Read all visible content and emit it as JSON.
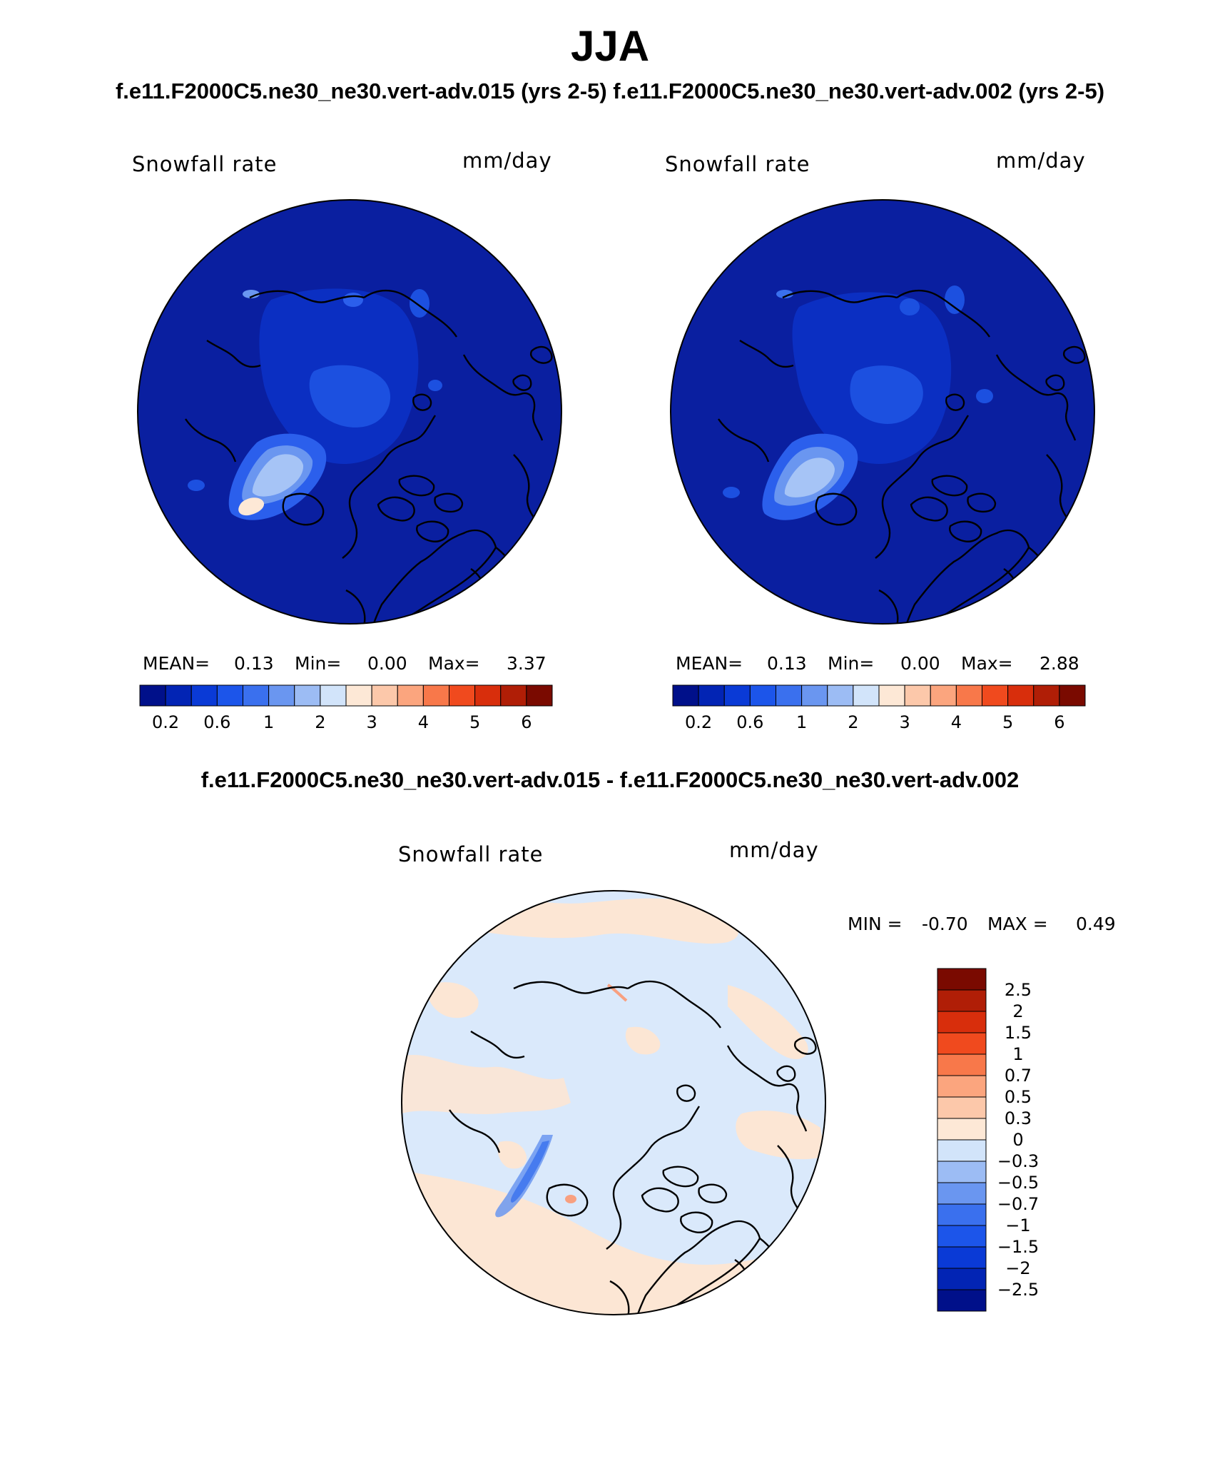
{
  "title": "JJA",
  "case_titles": "f.e11.F2000C5.ne30_ne30.vert-adv.015 (yrs 2-5) f.e11.F2000C5.ne30_ne30.vert-adv.002 (yrs 2-5)",
  "panels": [
    {
      "variable": "Snowfall rate",
      "units": "mm/day",
      "stats": {
        "mean_label": "MEAN=",
        "mean": "0.13",
        "min_label": "Min=",
        "min": "0.00",
        "max_label": "Max=",
        "max": "3.37"
      }
    },
    {
      "variable": "Snowfall rate",
      "units": "mm/day",
      "stats": {
        "mean_label": "MEAN=",
        "mean": "0.13",
        "min_label": "Min=",
        "min": "0.00",
        "max_label": "Max=",
        "max": "2.88"
      }
    }
  ],
  "diff_title": "f.e11.F2000C5.ne30_ne30.vert-adv.015 - f.e11.F2000C5.ne30_ne30.vert-adv.002",
  "diff_panel": {
    "variable": "Snowfall rate",
    "units": "mm/day",
    "min_label": "MIN =",
    "min": "-0.70",
    "max_label": "MAX =",
    "max": "0.49"
  },
  "colorbar_field": {
    "colors": [
      "#00108a",
      "#0224b4",
      "#0a3ad6",
      "#1c55ea",
      "#3a70ee",
      "#6a96f0",
      "#9cbcf4",
      "#d2e4fa",
      "#fde8d6",
      "#fcc8aa",
      "#fba57e",
      "#f8784a",
      "#f04a1e",
      "#d82e0c",
      "#b01e06",
      "#7a0a00"
    ],
    "tick_labels": [
      "0.2",
      "0.6",
      "1",
      "2",
      "3",
      "4",
      "5",
      "6"
    ]
  },
  "colorbar_diff": {
    "colors": [
      "#7a0a00",
      "#b01e06",
      "#d82e0c",
      "#f04a1e",
      "#f8784a",
      "#fba57e",
      "#fcc8aa",
      "#fde8d6",
      "#d2e4fa",
      "#9cbcf4",
      "#6a96f0",
      "#3a70ee",
      "#1c55ea",
      "#0a3ad6",
      "#0224b4",
      "#00108a"
    ],
    "tick_labels": [
      "2.5",
      "2",
      "1.5",
      "1",
      "0.7",
      "0.5",
      "0.3",
      "0",
      "−0.3",
      "−0.5",
      "−0.7",
      "−1",
      "−1.5",
      "−2",
      "−2.5"
    ]
  },
  "colors": {
    "ocean_field": "#0a1fa0",
    "diff_background": "#dae9fb",
    "diff_positive": "#fce6d4"
  }
}
